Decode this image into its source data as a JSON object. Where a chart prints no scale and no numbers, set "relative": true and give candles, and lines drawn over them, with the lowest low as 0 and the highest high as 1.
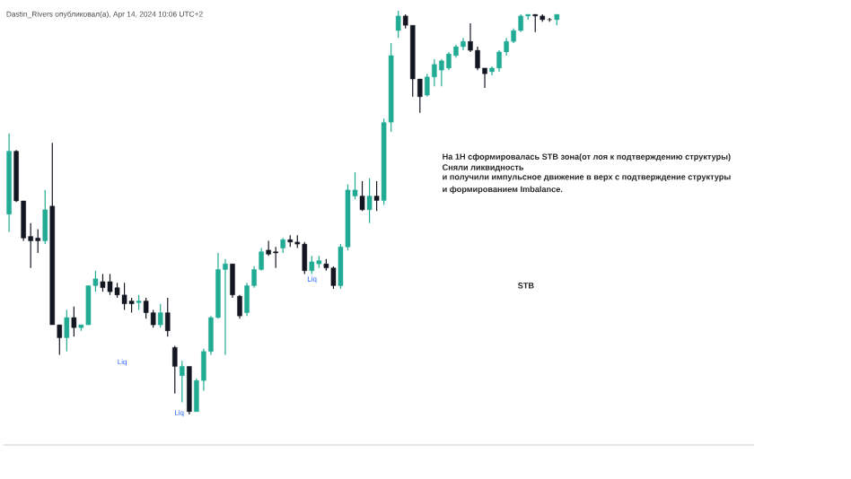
{
  "chart_data": {
    "type": "candlestick",
    "title": "Dastin_Rivers опубликовал(а), Apr 14, 2024 10:06 UTC+2",
    "relative": true,
    "categories": [
      null,
      null,
      null,
      null,
      null,
      null,
      null,
      null,
      null,
      null,
      null,
      null,
      null,
      null,
      null,
      null,
      null,
      null,
      null,
      null,
      null,
      null,
      null,
      null,
      null,
      null,
      null,
      null,
      null,
      null,
      null,
      null,
      null,
      null,
      null,
      null,
      null,
      null,
      null,
      null,
      null,
      null,
      null,
      null,
      null,
      null,
      null,
      null,
      null,
      null,
      null,
      null,
      null,
      null,
      null,
      null,
      null,
      null,
      null,
      null,
      null,
      null,
      null,
      null,
      null,
      null,
      null,
      null,
      null,
      null,
      null,
      null,
      null,
      null,
      null,
      null,
      null
    ],
    "ohlc": [
      [
        0.496,
        0.696,
        0.452,
        0.652
      ],
      [
        0.652,
        0.655,
        0.526,
        0.529
      ],
      [
        0.529,
        0.529,
        0.43,
        0.437
      ],
      [
        0.441,
        0.474,
        0.363,
        0.43
      ],
      [
        0.437,
        0.459,
        0.4,
        0.43
      ],
      [
        0.43,
        0.556,
        0.422,
        0.507
      ],
      [
        0.516,
        0.673,
        0.222,
        0.222
      ],
      [
        0.222,
        0.222,
        0.148,
        0.19
      ],
      [
        0.19,
        0.259,
        0.156,
        0.24
      ],
      [
        0.24,
        0.267,
        0.193,
        0.215
      ],
      [
        0.215,
        0.222,
        0.207,
        0.222
      ],
      [
        0.222,
        0.319,
        0.222,
        0.319
      ],
      [
        0.319,
        0.356,
        0.304,
        0.336
      ],
      [
        0.329,
        0.348,
        0.304,
        0.314
      ],
      [
        0.329,
        0.348,
        0.296,
        0.304
      ],
      [
        0.314,
        0.326,
        0.289,
        0.296
      ],
      [
        0.296,
        0.326,
        0.259,
        0.274
      ],
      [
        0.281,
        0.289,
        0.252,
        0.274
      ],
      [
        0.277,
        0.296,
        0.259,
        0.281
      ],
      [
        0.281,
        0.289,
        0.237,
        0.252
      ],
      [
        0.252,
        0.259,
        0.215,
        0.222
      ],
      [
        0.222,
        0.274,
        0.215,
        0.252
      ],
      [
        0.252,
        0.289,
        0.193,
        0.207
      ],
      [
        0.166,
        0.17,
        0.052,
        0.119
      ],
      [
        0.096,
        0.133,
        0.03,
        0.119
      ],
      [
        0.119,
        0.119,
        0.0,
        0.007
      ],
      [
        0.007,
        0.089,
        0.007,
        0.084
      ],
      [
        0.084,
        0.163,
        0.059,
        0.156
      ],
      [
        0.156,
        0.244,
        0.148,
        0.24
      ],
      [
        0.24,
        0.4,
        0.237,
        0.359
      ],
      [
        0.359,
        0.385,
        0.148,
        0.373
      ],
      [
        0.373,
        0.373,
        0.289,
        0.296
      ],
      [
        0.293,
        0.296,
        0.237,
        0.244
      ],
      [
        0.252,
        0.326,
        0.244,
        0.319
      ],
      [
        0.319,
        0.367,
        0.314,
        0.359
      ],
      [
        0.359,
        0.412,
        0.356,
        0.403
      ],
      [
        0.407,
        0.43,
        0.393,
        0.397
      ],
      [
        0.403,
        0.415,
        0.363,
        0.4
      ],
      [
        0.412,
        0.437,
        0.4,
        0.433
      ],
      [
        0.433,
        0.444,
        0.415,
        0.427
      ],
      [
        0.427,
        0.444,
        0.412,
        0.422
      ],
      [
        0.422,
        0.427,
        0.348,
        0.356
      ],
      [
        0.356,
        0.393,
        0.348,
        0.378
      ],
      [
        0.373,
        0.393,
        0.363,
        0.381
      ],
      [
        0.373,
        0.385,
        0.356,
        0.363
      ],
      [
        0.363,
        0.367,
        0.311,
        0.319
      ],
      [
        0.319,
        0.422,
        0.311,
        0.415
      ],
      [
        0.415,
        0.57,
        0.407,
        0.556
      ],
      [
        0.541,
        0.6,
        0.533,
        0.556
      ],
      [
        0.541,
        0.578,
        0.504,
        0.507
      ],
      [
        0.507,
        0.585,
        0.474,
        0.541
      ],
      [
        0.541,
        0.578,
        0.504,
        0.53
      ],
      [
        0.53,
        0.733,
        0.519,
        0.723
      ],
      [
        0.724,
        0.92,
        0.7,
        0.889
      ],
      [
        0.951,
        1.0,
        0.933,
        0.987
      ],
      [
        0.987,
        0.991,
        0.956,
        0.964
      ],
      [
        0.964,
        0.964,
        0.787,
        0.831
      ],
      [
        0.831,
        0.831,
        0.747,
        0.787
      ],
      [
        0.791,
        0.844,
        0.787,
        0.836
      ],
      [
        0.836,
        0.88,
        0.813,
        0.867
      ],
      [
        0.853,
        0.88,
        0.813,
        0.876
      ],
      [
        0.858,
        0.898,
        0.853,
        0.893
      ],
      [
        0.889,
        0.916,
        0.884,
        0.911
      ],
      [
        0.911,
        0.933,
        0.902,
        0.924
      ],
      [
        0.924,
        0.969,
        0.898,
        0.902
      ],
      [
        0.902,
        0.911,
        0.853,
        0.858
      ],
      [
        0.858,
        0.858,
        0.809,
        0.844
      ],
      [
        0.849,
        0.862,
        0.84,
        0.858
      ],
      [
        0.858,
        0.902,
        0.849,
        0.898
      ],
      [
        0.898,
        0.933,
        0.889,
        0.924
      ],
      [
        0.924,
        0.956,
        0.92,
        0.951
      ],
      [
        0.951,
        0.991,
        0.947,
        0.987
      ],
      [
        0.987,
        0.991,
        0.978,
        0.991
      ],
      [
        0.991,
        0.991,
        0.947,
        0.987
      ],
      [
        0.987,
        0.991,
        0.973,
        0.978
      ],
      [
        0.978,
        0.982,
        0.973,
        0.978
      ],
      [
        0.978,
        0.991,
        0.964,
        0.991
      ]
    ],
    "colors": [
      "#22ab94",
      "#131722",
      "#131722",
      "#131722",
      "#131722",
      "#22ab94",
      "#131722",
      "#131722",
      "#22ab94",
      "#131722",
      "#22ab94",
      "#22ab94",
      "#22ab94",
      "#131722",
      "#131722",
      "#131722",
      "#131722",
      "#131722",
      "#22ab94",
      "#131722",
      "#131722",
      "#22ab94",
      "#131722",
      "#131722",
      "#22ab94",
      "#131722",
      "#22ab94",
      "#22ab94",
      "#22ab94",
      "#22ab94",
      "#22ab94",
      "#131722",
      "#131722",
      "#22ab94",
      "#22ab94",
      "#22ab94",
      "#131722",
      "#131722",
      "#22ab94",
      "#131722",
      "#131722",
      "#131722",
      "#22ab94",
      "#22ab94",
      "#131722",
      "#131722",
      "#22ab94",
      "#22ab94",
      "#22ab94",
      "#131722",
      "#22ab94",
      "#131722",
      "#22ab94",
      "#22ab94",
      "#22ab94",
      "#131722",
      "#131722",
      "#131722",
      "#22ab94",
      "#22ab94",
      "#22ab94",
      "#22ab94",
      "#22ab94",
      "#22ab94",
      "#131722",
      "#131722",
      "#131722",
      "#22ab94",
      "#22ab94",
      "#22ab94",
      "#22ab94",
      "#22ab94",
      "#22ab94",
      "#131722",
      "#131722",
      "#131722",
      "#22ab94"
    ],
    "annotations": [
      "На 1H сформировалась STB зона(от лоя к подтверждению структуры)",
      "Сняли ликвидность",
      "и получили импульсное движение в верх с подтверждение структуры",
      "и формированием Imbalance.",
      "STB",
      "Liq",
      "Liq",
      "Liq"
    ]
  }
}
